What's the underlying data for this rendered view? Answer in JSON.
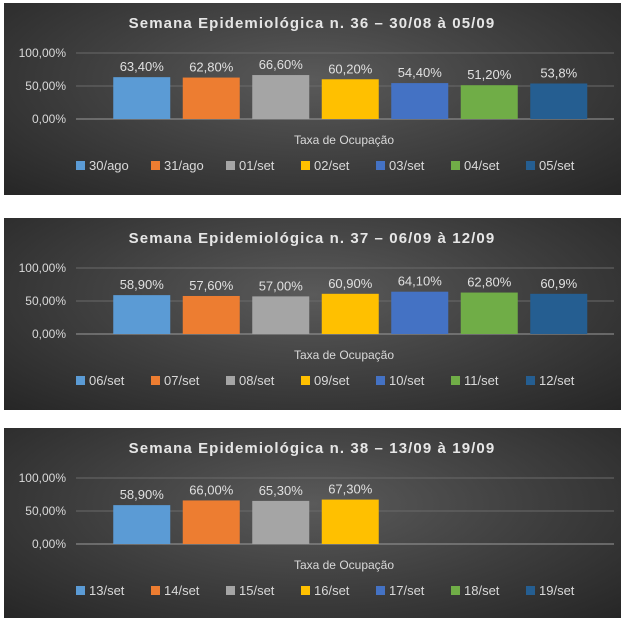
{
  "colors": [
    "#5b9bd5",
    "#ed7d31",
    "#a5a5a5",
    "#ffc000",
    "#4472c4",
    "#70ad47",
    "#255e91"
  ],
  "chart_data": [
    {
      "type": "bar",
      "title": "Semana Epidemiológica n. 36 – 30/08 à 05/09",
      "xlabel": "Taxa de Ocupação",
      "categories": [
        "Taxa de Ocupação"
      ],
      "yticks": [
        "100,00%",
        "50,00%",
        "0,00%"
      ],
      "ylim": [
        0,
        100
      ],
      "series": [
        {
          "name": "30/ago",
          "values": [
            63.4
          ],
          "label": "63,40%"
        },
        {
          "name": "31/ago",
          "values": [
            62.8
          ],
          "label": "62,80%"
        },
        {
          "name": "01/set",
          "values": [
            66.6
          ],
          "label": "66,60%"
        },
        {
          "name": "02/set",
          "values": [
            60.2
          ],
          "label": "60,20%"
        },
        {
          "name": "03/set",
          "values": [
            54.4
          ],
          "label": "54,40%"
        },
        {
          "name": "04/set",
          "values": [
            51.2
          ],
          "label": "51,20%"
        },
        {
          "name": "05/set",
          "values": [
            53.8
          ],
          "label": "53,8%"
        }
      ],
      "legend": "bottom"
    },
    {
      "type": "bar",
      "title": "Semana Epidemiológica n. 37 – 06/09 à 12/09",
      "xlabel": "Taxa de Ocupação",
      "categories": [
        "Taxa de Ocupação"
      ],
      "yticks": [
        "100,00%",
        "50,00%",
        "0,00%"
      ],
      "ylim": [
        0,
        100
      ],
      "series": [
        {
          "name": "06/set",
          "values": [
            58.9
          ],
          "label": "58,90%"
        },
        {
          "name": "07/set",
          "values": [
            57.6
          ],
          "label": "57,60%"
        },
        {
          "name": "08/set",
          "values": [
            57.0
          ],
          "label": "57,00%"
        },
        {
          "name": "09/set",
          "values": [
            60.9
          ],
          "label": "60,90%"
        },
        {
          "name": "10/set",
          "values": [
            64.1
          ],
          "label": "64,10%"
        },
        {
          "name": "11/set",
          "values": [
            62.8
          ],
          "label": "62,80%"
        },
        {
          "name": "12/set",
          "values": [
            60.9
          ],
          "label": "60,9%"
        }
      ],
      "legend": "bottom"
    },
    {
      "type": "bar",
      "title": "Semana Epidemiológica n. 38 – 13/09 à 19/09",
      "xlabel": "Taxa de Ocupação",
      "categories": [
        "Taxa de Ocupação"
      ],
      "yticks": [
        "100,00%",
        "50,00%",
        "0,00%"
      ],
      "ylim": [
        0,
        100
      ],
      "series": [
        {
          "name": "13/set",
          "values": [
            58.9
          ],
          "label": "58,90%"
        },
        {
          "name": "14/set",
          "values": [
            66.0
          ],
          "label": "66,00%"
        },
        {
          "name": "15/set",
          "values": [
            65.3
          ],
          "label": "65,30%"
        },
        {
          "name": "16/set",
          "values": [
            67.3
          ],
          "label": "67,30%"
        },
        {
          "name": "17/set",
          "values": [
            null
          ],
          "label": ""
        },
        {
          "name": "18/set",
          "values": [
            null
          ],
          "label": ""
        },
        {
          "name": "19/set",
          "values": [
            null
          ],
          "label": ""
        }
      ],
      "legend": "bottom"
    }
  ]
}
